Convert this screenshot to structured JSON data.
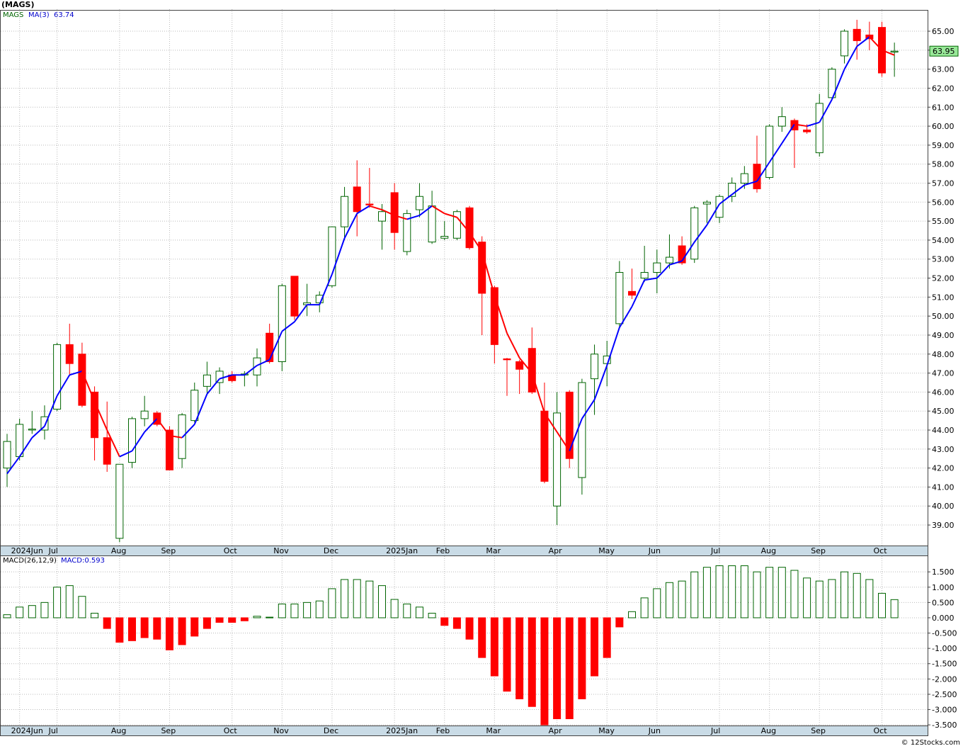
{
  "chart_data": [
    {
      "type": "candlestick",
      "title": "(MAGS)",
      "categories": [
        null,
        null,
        null,
        null,
        null,
        null,
        null,
        null,
        null,
        null,
        null,
        null,
        null,
        null,
        null,
        null,
        null,
        null,
        null,
        null,
        null,
        null,
        null,
        null,
        null,
        null,
        null,
        null,
        null,
        null,
        null,
        null,
        null,
        null,
        null,
        null,
        null,
        null,
        null,
        null,
        null,
        null,
        null,
        null,
        null,
        null,
        null,
        null,
        null,
        null,
        null,
        null,
        null,
        null,
        null,
        null,
        null,
        null,
        null,
        null,
        null,
        null,
        null,
        null,
        null,
        null,
        null,
        null,
        null,
        null,
        null,
        null
      ],
      "series": [
        {
          "name": "MAGS",
          "up_color": "#006400",
          "down_color": "#ff0000",
          "open": [
            42.0,
            42.6,
            44.0,
            44.0,
            45.1,
            48.5,
            48.0,
            46.0,
            43.6,
            38.3,
            42.3,
            44.6,
            44.9,
            44.0,
            42.5,
            44.5,
            46.3,
            46.5,
            46.9,
            46.9,
            46.9,
            49.1,
            47.6,
            52.1,
            50.6,
            50.7,
            51.6,
            54.7,
            56.8,
            55.9,
            55.0,
            56.5,
            53.4,
            55.6,
            53.9,
            54.1,
            54.1,
            55.7,
            53.9,
            51.5,
            47.75,
            47.6,
            48.3,
            45.0,
            40.0,
            46.0,
            41.5,
            46.7,
            47.5,
            49.6,
            51.3,
            52.0,
            52.3,
            52.8,
            53.7,
            53.0,
            55.9,
            55.2,
            56.3,
            57.0,
            58.0,
            57.3,
            60.0,
            60.3,
            59.8,
            58.6,
            61.5,
            63.7,
            65.1,
            64.8,
            65.2,
            63.9
          ],
          "high": [
            43.8,
            44.6,
            45.0,
            45.3,
            48.6,
            49.6,
            48.6,
            46.3,
            45.5,
            42.2,
            44.7,
            45.8,
            45.0,
            44.2,
            44.9,
            46.5,
            47.6,
            47.3,
            47.1,
            47.1,
            48.3,
            49.6,
            51.7,
            52.1,
            51.7,
            51.3,
            54.7,
            56.8,
            58.2,
            57.8,
            55.9,
            57.0,
            55.6,
            57.0,
            56.6,
            55.0,
            55.6,
            55.8,
            54.2,
            51.6,
            47.8,
            47.7,
            49.4,
            46.5,
            46.0,
            46.1,
            46.7,
            48.5,
            48.7,
            52.9,
            52.5,
            53.7,
            53.5,
            54.3,
            54.2,
            55.8,
            56.1,
            56.4,
            57.3,
            57.9,
            59.5,
            60.1,
            61.0,
            60.4,
            60.1,
            61.7,
            63.1,
            65.1,
            65.6,
            65.5,
            65.5,
            64.4
          ],
          "low": [
            41.0,
            42.4,
            43.8,
            43.5,
            45.0,
            46.9,
            45.2,
            42.4,
            41.8,
            38.1,
            42.0,
            44.2,
            44.2,
            41.9,
            42.0,
            44.4,
            45.9,
            45.9,
            46.5,
            46.3,
            46.3,
            47.5,
            47.1,
            49.8,
            50.0,
            50.2,
            51.5,
            54.0,
            54.2,
            55.7,
            53.5,
            53.5,
            53.2,
            55.2,
            53.8,
            54.0,
            54.0,
            53.5,
            49.0,
            47.5,
            45.8,
            45.9,
            45.9,
            41.2,
            39.0,
            42.0,
            40.6,
            44.8,
            46.3,
            49.4,
            50.9,
            51.8,
            51.2,
            52.5,
            52.7,
            52.8,
            54.9,
            54.9,
            56.0,
            56.7,
            56.5,
            57.2,
            59.7,
            57.8,
            59.6,
            58.4,
            61.4,
            63.3,
            63.5,
            64.0,
            62.6,
            62.6
          ],
          "close": [
            43.4,
            44.3,
            44.05,
            44.7,
            48.5,
            47.5,
            45.3,
            43.6,
            42.2,
            42.2,
            44.6,
            45.0,
            44.3,
            41.9,
            44.8,
            46.1,
            46.9,
            47.1,
            46.6,
            46.95,
            47.8,
            47.6,
            51.6,
            50.0,
            50.7,
            51.1,
            54.7,
            56.3,
            55.5,
            55.85,
            55.5,
            54.4,
            55.4,
            56.3,
            55.8,
            54.2,
            55.5,
            53.6,
            51.2,
            48.5,
            47.7,
            47.2,
            46.0,
            41.3,
            44.9,
            42.5,
            46.5,
            48.0,
            47.9,
            52.3,
            51.1,
            52.3,
            52.8,
            53.1,
            52.8,
            55.7,
            56.0,
            56.3,
            57.0,
            57.5,
            56.7,
            60.0,
            60.5,
            59.8,
            59.7,
            61.2,
            63.0,
            65.0,
            64.5,
            64.6,
            62.8,
            63.95
          ]
        },
        {
          "name": "MA(3)",
          "up_color": "#0000ff",
          "down_color": "#ff0000",
          "values": [
            41.7,
            42.6,
            43.6,
            44.2,
            45.8,
            46.9,
            47.1,
            45.5,
            44.0,
            42.6,
            42.9,
            43.9,
            44.6,
            43.7,
            43.6,
            44.3,
            45.9,
            46.7,
            46.9,
            46.9,
            47.4,
            47.7,
            49.2,
            49.7,
            50.6,
            50.6,
            52.2,
            54.1,
            55.4,
            55.8,
            55.6,
            55.3,
            55.1,
            55.3,
            55.8,
            55.4,
            55.2,
            54.4,
            53.4,
            51.1,
            49.1,
            47.8,
            47.0,
            44.9,
            43.9,
            42.9,
            44.6,
            45.6,
            47.4,
            49.4,
            50.5,
            51.9,
            52.0,
            52.7,
            52.9,
            53.9,
            54.8,
            55.9,
            56.4,
            56.9,
            57.1,
            58.1,
            59.1,
            60.1,
            60.0,
            60.2,
            61.4,
            63.0,
            64.2,
            64.7,
            64.0,
            63.74
          ]
        }
      ],
      "xticks": [
        {
          "value": 1,
          "label": "2024Jun"
        },
        {
          "value": 4,
          "label": "Jul"
        },
        {
          "value": 9,
          "label": "Aug"
        },
        {
          "value": 13,
          "label": "Sep"
        },
        {
          "value": 18,
          "label": "Oct"
        },
        {
          "value": 22,
          "label": "Nov"
        },
        {
          "value": 26,
          "label": "Dec"
        },
        {
          "value": 31,
          "label": "2025Jan"
        },
        {
          "value": 35,
          "label": "Feb"
        },
        {
          "value": 39,
          "label": "Mar"
        },
        {
          "value": 44,
          "label": "Apr"
        },
        {
          "value": 48,
          "label": "May"
        },
        {
          "value": 52,
          "label": "Jun"
        },
        {
          "value": 57,
          "label": "Jul"
        },
        {
          "value": 61,
          "label": "Aug"
        },
        {
          "value": 65,
          "label": "Sep"
        },
        {
          "value": 70,
          "label": "Oct"
        }
      ],
      "ylim": [
        37.92,
        66.12
      ],
      "yticks": [
        {
          "value": 39,
          "label": "39.00"
        },
        {
          "value": 40,
          "label": "40.00"
        },
        {
          "value": 41,
          "label": "41.00"
        },
        {
          "value": 42,
          "label": "42.00"
        },
        {
          "value": 43,
          "label": "43.00"
        },
        {
          "value": 44,
          "label": "44.00"
        },
        {
          "value": 45,
          "label": "45.00"
        },
        {
          "value": 46,
          "label": "46.00"
        },
        {
          "value": 47,
          "label": "47.00"
        },
        {
          "value": 48,
          "label": "48.00"
        },
        {
          "value": 49,
          "label": "49.00"
        },
        {
          "value": 50,
          "label": "50.00"
        },
        {
          "value": 51,
          "label": "51.00"
        },
        {
          "value": 52,
          "label": "52.00"
        },
        {
          "value": 53,
          "label": "53.00"
        },
        {
          "value": 54,
          "label": "54.00"
        },
        {
          "value": 55,
          "label": "55.00"
        },
        {
          "value": 56,
          "label": "56.00"
        },
        {
          "value": 57,
          "label": "57.00"
        },
        {
          "value": 58,
          "label": "58.00"
        },
        {
          "value": 59,
          "label": "59.00"
        },
        {
          "value": 60,
          "label": "60.00"
        },
        {
          "value": 61,
          "label": "61.00"
        },
        {
          "value": 62,
          "label": "62.00"
        },
        {
          "value": 63,
          "label": "63.00"
        },
        {
          "value": 64,
          "label": "64.00"
        },
        {
          "value": 65,
          "label": "65.00"
        }
      ],
      "grid": true
    },
    {
      "type": "bar",
      "title": "MACD(26,12,9)",
      "last_label": "MACD:",
      "pos_color": "#006400",
      "neg_color": "#ff0000",
      "categories": [
        null,
        null,
        null,
        null,
        null,
        null,
        null,
        null,
        null,
        null,
        null,
        null,
        null,
        null,
        null,
        null,
        null,
        null,
        null,
        null,
        null,
        null,
        null,
        null,
        null,
        null,
        null,
        null,
        null,
        null,
        null,
        null,
        null,
        null,
        null,
        null,
        null,
        null,
        null,
        null,
        null,
        null,
        null,
        null,
        null,
        null,
        null,
        null,
        null,
        null,
        null,
        null,
        null,
        null,
        null,
        null,
        null,
        null,
        null,
        null,
        null,
        null,
        null,
        null,
        null,
        null,
        null,
        null,
        null,
        null,
        null,
        null
      ],
      "values": [
        0.1,
        0.35,
        0.4,
        0.5,
        1.0,
        1.05,
        0.7,
        0.15,
        -0.35,
        -0.8,
        -0.75,
        -0.65,
        -0.7,
        -1.05,
        -0.88,
        -0.6,
        -0.35,
        -0.15,
        -0.15,
        -0.1,
        0.05,
        0.02,
        0.45,
        0.45,
        0.5,
        0.55,
        0.95,
        1.25,
        1.25,
        1.2,
        1.05,
        0.6,
        0.45,
        0.35,
        0.15,
        -0.25,
        -0.35,
        -0.7,
        -1.3,
        -1.9,
        -2.4,
        -2.65,
        -2.9,
        -3.5,
        -3.3,
        -3.3,
        -2.65,
        -1.9,
        -1.3,
        -0.3,
        0.2,
        0.65,
        0.95,
        1.15,
        1.2,
        1.5,
        1.65,
        1.7,
        1.7,
        1.7,
        1.5,
        1.65,
        1.65,
        1.55,
        1.3,
        1.2,
        1.25,
        1.5,
        1.45,
        1.25,
        0.8,
        0.593
      ],
      "xticks": [
        {
          "value": 1,
          "label": "2024Jun"
        },
        {
          "value": 4,
          "label": "Jul"
        },
        {
          "value": 9,
          "label": "Aug"
        },
        {
          "value": 13,
          "label": "Sep"
        },
        {
          "value": 18,
          "label": "Oct"
        },
        {
          "value": 22,
          "label": "Nov"
        },
        {
          "value": 26,
          "label": "Dec"
        },
        {
          "value": 31,
          "label": "2025Jan"
        },
        {
          "value": 35,
          "label": "Feb"
        },
        {
          "value": 39,
          "label": "Mar"
        },
        {
          "value": 44,
          "label": "Apr"
        },
        {
          "value": 48,
          "label": "May"
        },
        {
          "value": 52,
          "label": "Jun"
        },
        {
          "value": 57,
          "label": "Jul"
        },
        {
          "value": 61,
          "label": "Aug"
        },
        {
          "value": 65,
          "label": "Sep"
        },
        {
          "value": 70,
          "label": "Oct"
        }
      ],
      "ylim": [
        -3.52,
        1.99
      ],
      "yticks": [
        {
          "value": -3.5,
          "label": "-3.500"
        },
        {
          "value": -3,
          "label": "-3.000"
        },
        {
          "value": -2.5,
          "label": "-2.500"
        },
        {
          "value": -2,
          "label": "-2.000"
        },
        {
          "value": -1.5,
          "label": "-1.500"
        },
        {
          "value": -1,
          "label": "-1.000"
        },
        {
          "value": -0.5,
          "label": "-0.500"
        },
        {
          "value": 0,
          "label": "0.000"
        },
        {
          "value": 0.5,
          "label": "0.500"
        },
        {
          "value": 1,
          "label": "1.000"
        },
        {
          "value": 1.5,
          "label": "1.500"
        }
      ],
      "grid": true
    }
  ],
  "footer": "© 12Stocks.com"
}
